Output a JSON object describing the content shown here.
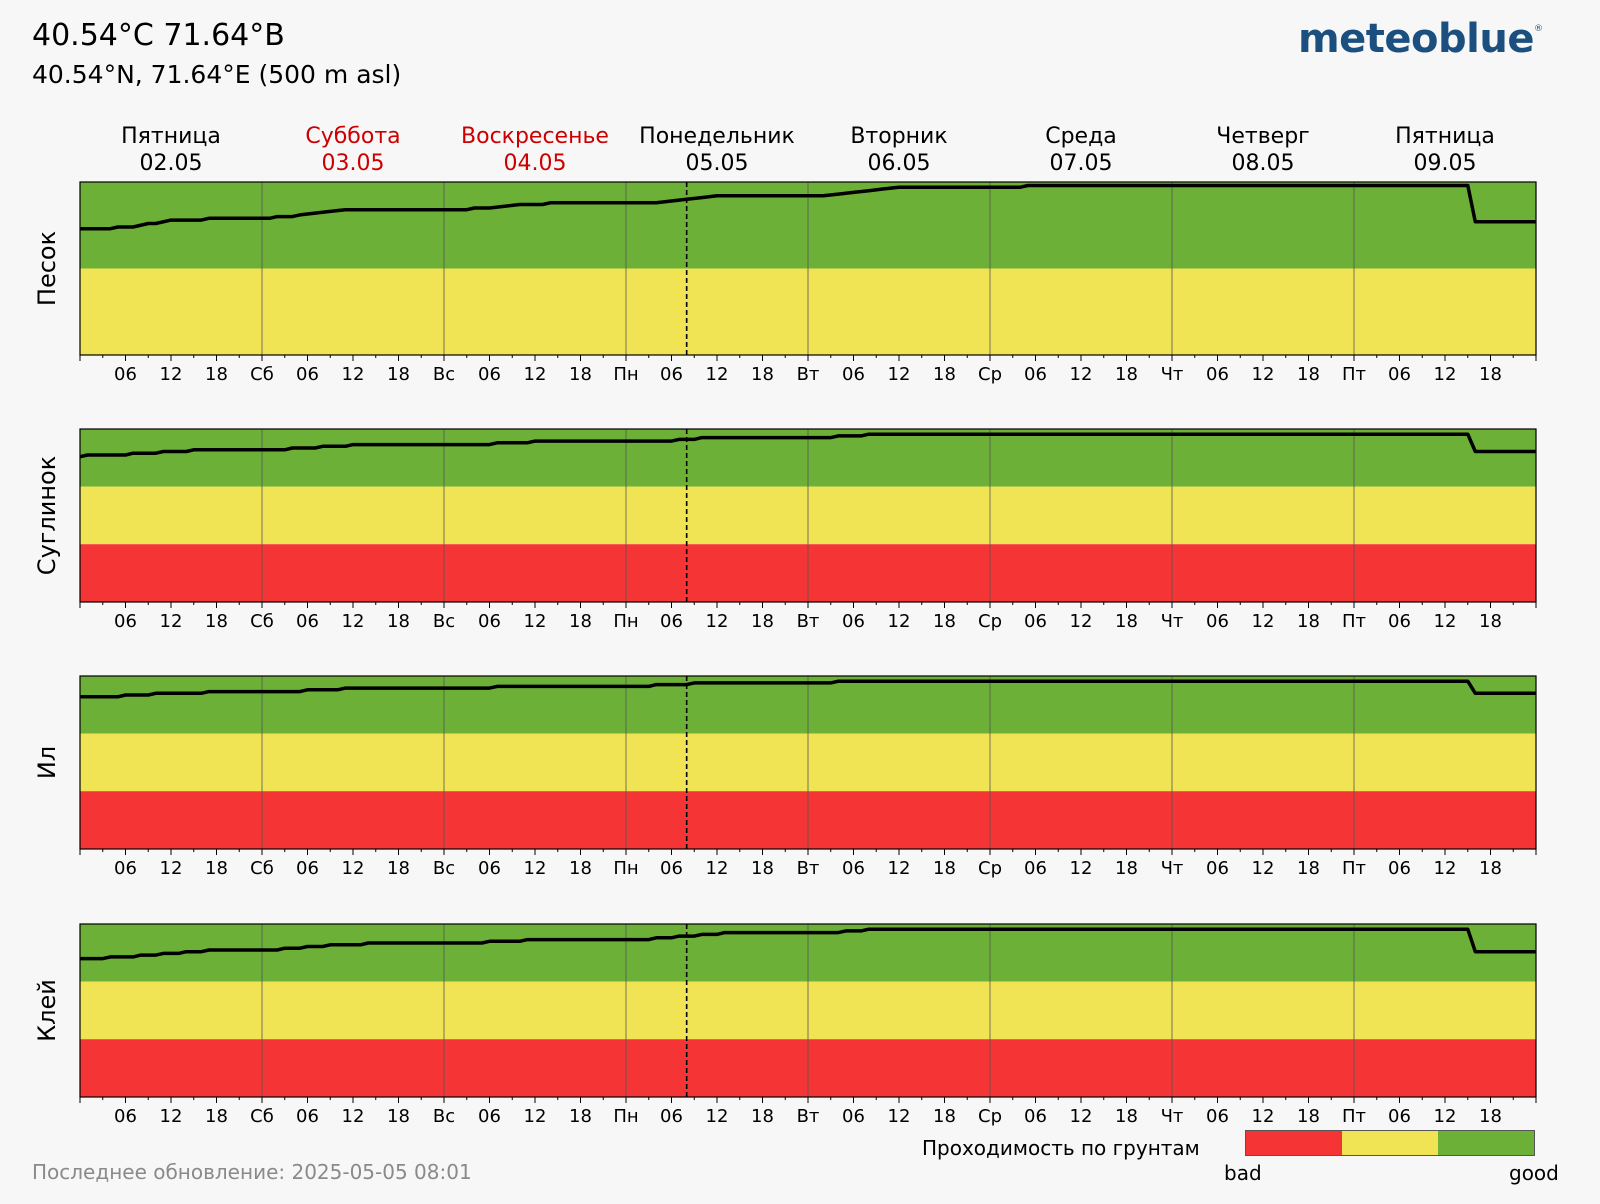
{
  "header": {
    "title": "40.54°C 71.64°B",
    "subtitle": "40.54°N, 71.64°E (500 m asl)",
    "logo": "meteoblue",
    "logo_mark": "®"
  },
  "footer": {
    "last_update": "Последнее обновление: 2025-05-05 08:01"
  },
  "legend": {
    "title": "Проходимость по грунтам",
    "bad_label": "bad",
    "good_label": "good",
    "colors": [
      "#f53535",
      "#f0e354",
      "#6db037"
    ]
  },
  "chart_data": {
    "type": "line",
    "days": [
      {
        "name": "Пятница",
        "date": "02.05",
        "weekend": false
      },
      {
        "name": "Суббота",
        "date": "03.05",
        "weekend": true
      },
      {
        "name": "Воскресенье",
        "date": "04.05",
        "weekend": true
      },
      {
        "name": "Понедельник",
        "date": "05.05",
        "weekend": false
      },
      {
        "name": "Вторник",
        "date": "06.05",
        "weekend": false
      },
      {
        "name": "Среда",
        "date": "07.05",
        "weekend": false
      },
      {
        "name": "Четверг",
        "date": "08.05",
        "weekend": false
      },
      {
        "name": "Пятница",
        "date": "09.05",
        "weekend": false
      }
    ],
    "day_tick_labels": [
      "Сб",
      "Вс",
      "Пн",
      "Вт",
      "Ср",
      "Чт",
      "Пт"
    ],
    "hour_tick_labels": [
      "06",
      "12",
      "18"
    ],
    "x_range_hours": [
      0,
      192
    ],
    "now_hour": 80,
    "colors": {
      "good": "#6db037",
      "medium": "#f0e354",
      "bad": "#f53535",
      "weekend_text": "#cc0000",
      "line": "#000000"
    },
    "panels": [
      {
        "ylabel": "Песок",
        "zones": [
          {
            "color": "good",
            "frac": 0.5
          },
          {
            "color": "medium",
            "frac": 0.5
          }
        ],
        "series": [
          [
            0,
            0.73
          ],
          [
            4,
            0.73
          ],
          [
            5,
            0.74
          ],
          [
            7,
            0.74
          ],
          [
            9,
            0.76
          ],
          [
            10,
            0.76
          ],
          [
            12,
            0.78
          ],
          [
            16,
            0.78
          ],
          [
            17,
            0.79
          ],
          [
            25,
            0.79
          ],
          [
            26,
            0.8
          ],
          [
            28,
            0.8
          ],
          [
            29,
            0.81
          ],
          [
            31,
            0.82
          ],
          [
            33,
            0.83
          ],
          [
            35,
            0.84
          ],
          [
            51,
            0.84
          ],
          [
            52,
            0.85
          ],
          [
            54,
            0.85
          ],
          [
            56,
            0.86
          ],
          [
            58,
            0.87
          ],
          [
            61,
            0.87
          ],
          [
            62,
            0.88
          ],
          [
            76,
            0.88
          ],
          [
            78,
            0.89
          ],
          [
            80,
            0.9
          ],
          [
            82,
            0.91
          ],
          [
            84,
            0.92
          ],
          [
            98,
            0.92
          ],
          [
            100,
            0.93
          ],
          [
            102,
            0.94
          ],
          [
            104,
            0.95
          ],
          [
            106,
            0.96
          ],
          [
            108,
            0.97
          ],
          [
            124,
            0.97
          ],
          [
            125,
            0.98
          ],
          [
            183,
            0.98
          ],
          [
            184,
            0.77
          ],
          [
            192,
            0.77
          ]
        ]
      },
      {
        "ylabel": "Суглинок",
        "zones": [
          {
            "color": "good",
            "frac": 0.333
          },
          {
            "color": "medium",
            "frac": 0.333
          },
          {
            "color": "bad",
            "frac": 0.334
          }
        ],
        "series": [
          [
            0,
            0.84
          ],
          [
            1,
            0.85
          ],
          [
            6,
            0.85
          ],
          [
            7,
            0.86
          ],
          [
            10,
            0.86
          ],
          [
            11,
            0.87
          ],
          [
            14,
            0.87
          ],
          [
            15,
            0.88
          ],
          [
            27,
            0.88
          ],
          [
            28,
            0.89
          ],
          [
            31,
            0.89
          ],
          [
            32,
            0.9
          ],
          [
            35,
            0.9
          ],
          [
            36,
            0.91
          ],
          [
            54,
            0.91
          ],
          [
            55,
            0.92
          ],
          [
            59,
            0.92
          ],
          [
            60,
            0.93
          ],
          [
            78,
            0.93
          ],
          [
            79,
            0.94
          ],
          [
            81,
            0.94
          ],
          [
            82,
            0.95
          ],
          [
            99,
            0.95
          ],
          [
            100,
            0.96
          ],
          [
            103,
            0.96
          ],
          [
            104,
            0.97
          ],
          [
            183,
            0.97
          ],
          [
            184,
            0.87
          ],
          [
            192,
            0.87
          ]
        ]
      },
      {
        "ylabel": "Ил",
        "zones": [
          {
            "color": "good",
            "frac": 0.333
          },
          {
            "color": "medium",
            "frac": 0.333
          },
          {
            "color": "bad",
            "frac": 0.334
          }
        ],
        "series": [
          [
            0,
            0.88
          ],
          [
            5,
            0.88
          ],
          [
            6,
            0.89
          ],
          [
            9,
            0.89
          ],
          [
            10,
            0.9
          ],
          [
            16,
            0.9
          ],
          [
            17,
            0.91
          ],
          [
            29,
            0.91
          ],
          [
            30,
            0.92
          ],
          [
            34,
            0.92
          ],
          [
            35,
            0.93
          ],
          [
            54,
            0.93
          ],
          [
            55,
            0.94
          ],
          [
            75,
            0.94
          ],
          [
            76,
            0.95
          ],
          [
            80,
            0.95
          ],
          [
            81,
            0.96
          ],
          [
            99,
            0.96
          ],
          [
            100,
            0.97
          ],
          [
            183,
            0.97
          ],
          [
            184,
            0.9
          ],
          [
            192,
            0.9
          ]
        ]
      },
      {
        "ylabel": "Клей",
        "zones": [
          {
            "color": "good",
            "frac": 0.333
          },
          {
            "color": "medium",
            "frac": 0.333
          },
          {
            "color": "bad",
            "frac": 0.334
          }
        ],
        "series": [
          [
            0,
            0.8
          ],
          [
            3,
            0.8
          ],
          [
            4,
            0.81
          ],
          [
            7,
            0.81
          ],
          [
            8,
            0.82
          ],
          [
            10,
            0.82
          ],
          [
            11,
            0.83
          ],
          [
            13,
            0.83
          ],
          [
            14,
            0.84
          ],
          [
            16,
            0.84
          ],
          [
            17,
            0.85
          ],
          [
            26,
            0.85
          ],
          [
            27,
            0.86
          ],
          [
            29,
            0.86
          ],
          [
            30,
            0.87
          ],
          [
            32,
            0.87
          ],
          [
            33,
            0.88
          ],
          [
            37,
            0.88
          ],
          [
            38,
            0.89
          ],
          [
            53,
            0.89
          ],
          [
            54,
            0.9
          ],
          [
            58,
            0.9
          ],
          [
            59,
            0.91
          ],
          [
            75,
            0.91
          ],
          [
            76,
            0.92
          ],
          [
            78,
            0.92
          ],
          [
            79,
            0.93
          ],
          [
            81,
            0.93
          ],
          [
            82,
            0.94
          ],
          [
            84,
            0.94
          ],
          [
            85,
            0.95
          ],
          [
            100,
            0.95
          ],
          [
            101,
            0.96
          ],
          [
            103,
            0.96
          ],
          [
            104,
            0.97
          ],
          [
            183,
            0.97
          ],
          [
            184,
            0.84
          ],
          [
            192,
            0.84
          ]
        ]
      }
    ]
  }
}
